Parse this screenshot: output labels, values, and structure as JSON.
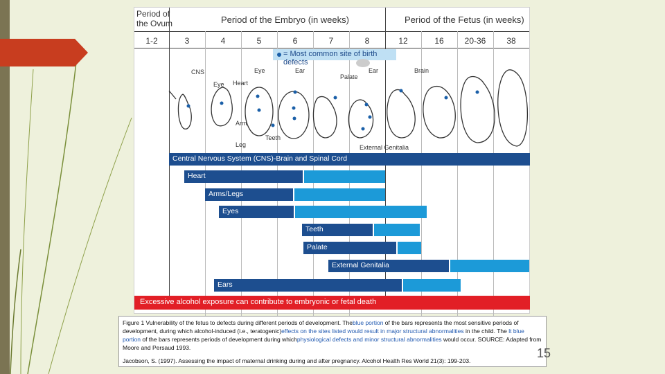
{
  "header": {
    "ovum_label_line1": "Period of",
    "ovum_label_line2": "the Ovum",
    "embryo_label": "Period of the Embryo (in weeks)",
    "fetus_label": "Period of the Fetus (in weeks)"
  },
  "weeks": [
    "1-2",
    "3",
    "4",
    "5",
    "6",
    "7",
    "8",
    "12",
    "16",
    "20-36",
    "38"
  ],
  "legend": {
    "text": "= Most common site of birth defects",
    "dot_color": "#1a5fa8"
  },
  "organ_labels": {
    "cns": "CNS",
    "eye_top": "Eye",
    "ear_top": "Ear",
    "ear_right": "Ear",
    "brain": "Brain",
    "heart": "Heart",
    "eye_left": "Eye",
    "palate": "Palate",
    "arm": "Arm",
    "teeth": "Teeth",
    "leg": "Leg",
    "external_genitalia": "External Genitalia"
  },
  "bars": [
    {
      "label": "Central Nervous System (CNS)-Brain and Spinal Cord",
      "dark_fraction": 1.0
    },
    {
      "label": "Heart",
      "dark_fraction": 0.59
    },
    {
      "label": "Arms/Legs",
      "dark_fraction": 0.49
    },
    {
      "label": "Eyes",
      "dark_fraction": 0.36
    },
    {
      "label": "Teeth",
      "dark_fraction": 0.6
    },
    {
      "label": "Palate",
      "dark_fraction": 0.79
    },
    {
      "label": "External Genitalia",
      "dark_fraction": 0.6
    },
    {
      "label": "Ears",
      "dark_fraction": 0.76
    }
  ],
  "alcohol_bar": {
    "text": "Excessive alcohol exposure can contribute to embryonic or fetal death"
  },
  "colors": {
    "dark_blue": "#1d4e8f",
    "light_blue": "#1c9ad8",
    "red": "#e21f26",
    "accent_arrow": "#c83d1f"
  },
  "caption": {
    "p1": "Figure 1 Vulnerability of the fetus to defects during different periods of development. The",
    "p2": "blue portion",
    "p3": " of the bars represents the most sensitive periods of development, during which alcohol-induced (i.e., teratogenic)",
    "p4": "effects on the sites listed would result in major structural abnormalities",
    "p5": " in the child. The ",
    "p6": "lt blue portion",
    "p7": " of the bars represents periods of development during which",
    "p8": "physiological defects and minor structural abnormalities",
    "p9": " would occur. SOURCE: Adapted from Moore and Persaud 1993.",
    "reference": "Jacobson, S. (1997). Assessing the impact of maternal drinking during and after pregnancy. Alcohol Health Res World 21(3): 199-203."
  },
  "page_number": "15"
}
